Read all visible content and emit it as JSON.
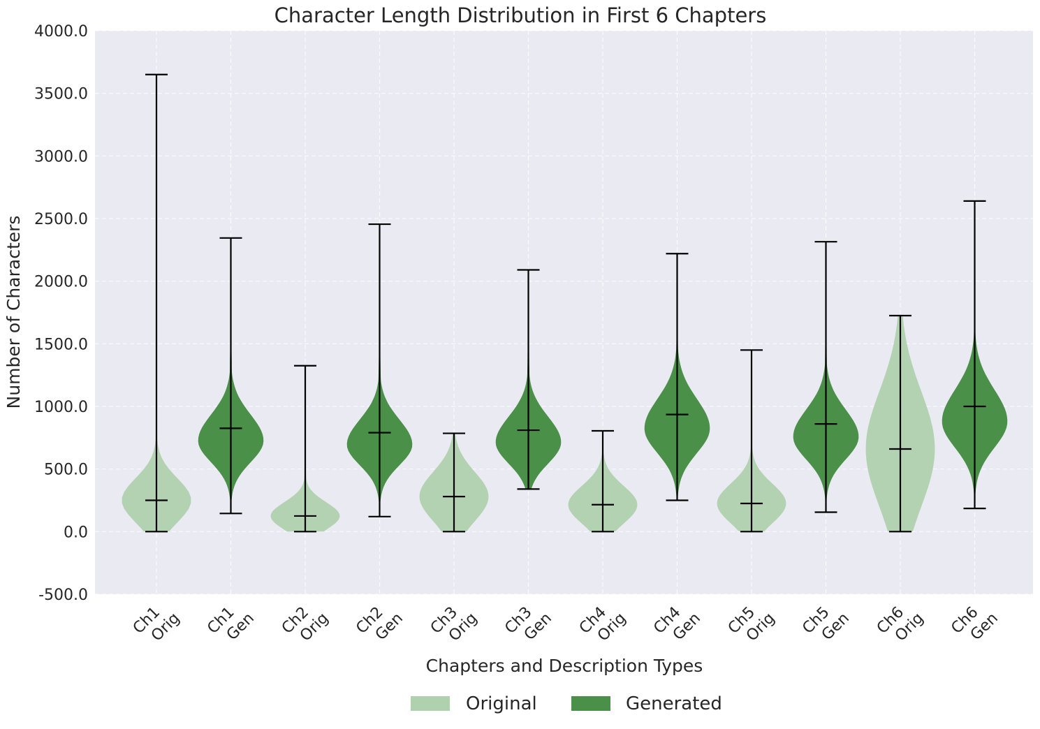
{
  "chart_data": {
    "type": "violin",
    "title": "Character Length Distribution in First 6 Chapters",
    "xlabel": "Chapters and Description Types",
    "ylabel": "Number of Characters",
    "ylim": [
      -500,
      4000
    ],
    "yticks": [
      "-500.0",
      "0.0",
      "500.0",
      "1000.0",
      "1500.0",
      "2000.0",
      "2500.0",
      "3000.0",
      "3500.0",
      "4000.0"
    ],
    "grid": true,
    "legend_position": "bottom-center",
    "colors": {
      "Original": "#b0d1ae",
      "Generated": "#4a9048",
      "background": "#eaeaf2",
      "whisker": "#000000"
    },
    "legend": [
      "Original",
      "Generated"
    ],
    "violins": [
      {
        "chapter": "Ch1",
        "type": "Orig",
        "series": "Original",
        "min": 0,
        "median": 250,
        "max": 3650
      },
      {
        "chapter": "Ch1",
        "type": "Gen",
        "series": "Generated",
        "min": 145,
        "median": 825,
        "max": 2345
      },
      {
        "chapter": "Ch2",
        "type": "Orig",
        "series": "Original",
        "min": 0,
        "median": 125,
        "max": 1325
      },
      {
        "chapter": "Ch2",
        "type": "Gen",
        "series": "Generated",
        "min": 120,
        "median": 790,
        "max": 2455
      },
      {
        "chapter": "Ch3",
        "type": "Orig",
        "series": "Original",
        "min": 0,
        "median": 280,
        "max": 785
      },
      {
        "chapter": "Ch3",
        "type": "Gen",
        "series": "Generated",
        "min": 340,
        "median": 810,
        "max": 2090
      },
      {
        "chapter": "Ch4",
        "type": "Orig",
        "series": "Original",
        "min": 0,
        "median": 215,
        "max": 805
      },
      {
        "chapter": "Ch4",
        "type": "Gen",
        "series": "Generated",
        "min": 250,
        "median": 935,
        "max": 2220
      },
      {
        "chapter": "Ch5",
        "type": "Orig",
        "series": "Original",
        "min": 0,
        "median": 225,
        "max": 1450
      },
      {
        "chapter": "Ch5",
        "type": "Gen",
        "series": "Generated",
        "min": 155,
        "median": 860,
        "max": 2315
      },
      {
        "chapter": "Ch6",
        "type": "Orig",
        "series": "Original",
        "min": 0,
        "median": 660,
        "max": 1725
      },
      {
        "chapter": "Ch6",
        "type": "Gen",
        "series": "Generated",
        "min": 185,
        "median": 1000,
        "max": 2640
      }
    ]
  }
}
